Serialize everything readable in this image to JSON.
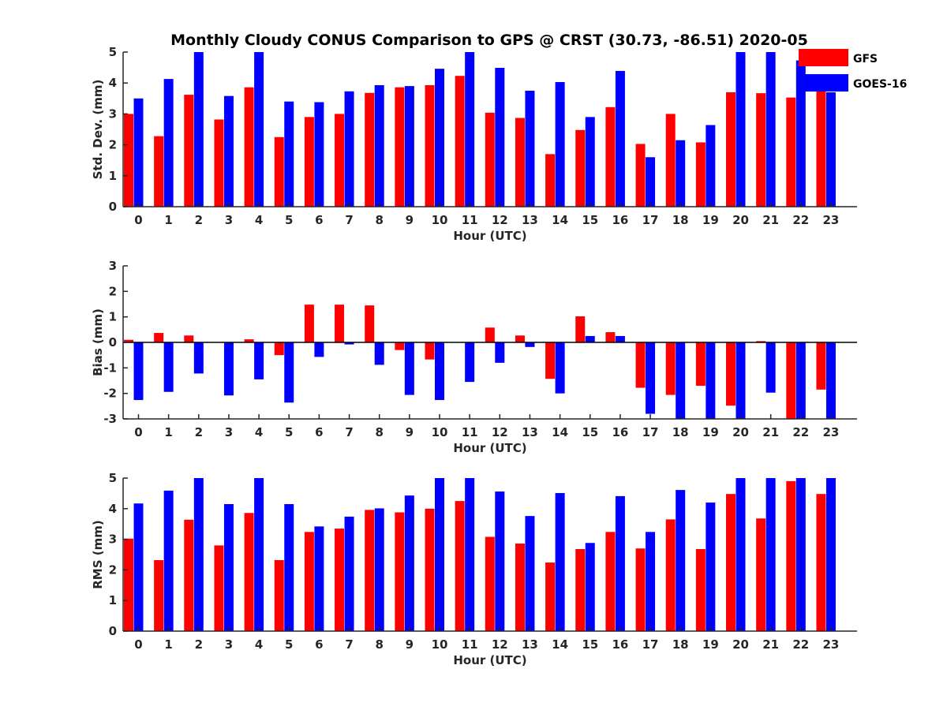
{
  "figure": {
    "title": "Monthly Cloudy CONUS Comparison to GPS @ CRST (30.73, -86.51) 2020-05"
  },
  "legend": {
    "placement": "top-right",
    "items": [
      {
        "name": "GFS",
        "color": "#ff0000"
      },
      {
        "name": "GOES-16",
        "color": "#0000ff"
      }
    ]
  },
  "chart_data": [
    {
      "type": "bar",
      "xlabel": "Hour (UTC)",
      "ylabel": "Std. Dev. (mm)",
      "ylim": [
        0,
        5
      ],
      "yticks": [
        0,
        1,
        2,
        3,
        4,
        5
      ],
      "categories": [
        "0",
        "1",
        "2",
        "3",
        "4",
        "5",
        "6",
        "7",
        "8",
        "9",
        "10",
        "11",
        "12",
        "13",
        "14",
        "15",
        "16",
        "17",
        "18",
        "19",
        "20",
        "21",
        "22",
        "23"
      ],
      "series": [
        {
          "name": "GFS",
          "color": "#ff0000",
          "values": [
            3.0,
            2.28,
            3.62,
            2.82,
            3.86,
            2.25,
            2.9,
            3.0,
            3.68,
            3.86,
            3.93,
            4.23,
            3.04,
            2.87,
            1.7,
            2.48,
            3.22,
            2.03,
            3.0,
            2.08,
            3.7,
            3.67,
            3.53,
            3.9
          ]
        },
        {
          "name": "GOES-16",
          "color": "#0000ff",
          "values": [
            3.5,
            4.13,
            5.0,
            3.58,
            5.0,
            3.4,
            3.38,
            3.73,
            3.93,
            3.9,
            4.46,
            5.0,
            4.49,
            3.75,
            4.03,
            2.9,
            4.39,
            1.6,
            2.15,
            2.64,
            5.0,
            5.0,
            4.73,
            3.7
          ]
        }
      ]
    },
    {
      "type": "bar",
      "xlabel": "Hour (UTC)",
      "ylabel": "Bias (mm)",
      "ylim": [
        -3,
        3
      ],
      "yticks": [
        -3,
        -2,
        -1,
        0,
        1,
        2,
        3
      ],
      "categories": [
        "0",
        "1",
        "2",
        "3",
        "4",
        "5",
        "6",
        "7",
        "8",
        "9",
        "10",
        "11",
        "12",
        "13",
        "14",
        "15",
        "16",
        "17",
        "18",
        "19",
        "20",
        "21",
        "22",
        "23"
      ],
      "series": [
        {
          "name": "GFS",
          "color": "#ff0000",
          "values": [
            0.1,
            0.37,
            0.27,
            0.0,
            0.12,
            -0.5,
            1.48,
            1.48,
            1.45,
            -0.3,
            -0.67,
            0.0,
            0.58,
            0.27,
            -1.43,
            1.02,
            0.4,
            -1.78,
            -2.06,
            -1.7,
            -2.48,
            0.05,
            -3.0,
            -1.85
          ]
        },
        {
          "name": "GOES-16",
          "color": "#0000ff",
          "values": [
            -2.26,
            -1.94,
            -1.22,
            -2.08,
            -1.45,
            -2.36,
            -0.57,
            -0.08,
            -0.88,
            -2.06,
            -2.26,
            -1.55,
            -0.8,
            -0.18,
            -2.0,
            0.25,
            0.25,
            -2.8,
            -3.0,
            -3.0,
            -3.0,
            -1.97,
            -3.0,
            -3.0
          ]
        }
      ]
    },
    {
      "type": "bar",
      "xlabel": "Hour (UTC)",
      "ylabel": "RMS (mm)",
      "ylim": [
        0,
        5
      ],
      "yticks": [
        0,
        1,
        2,
        3,
        4,
        5
      ],
      "categories": [
        "0",
        "1",
        "2",
        "3",
        "4",
        "5",
        "6",
        "7",
        "8",
        "9",
        "10",
        "11",
        "12",
        "13",
        "14",
        "15",
        "16",
        "17",
        "18",
        "19",
        "20",
        "21",
        "22",
        "23"
      ],
      "series": [
        {
          "name": "GFS",
          "color": "#ff0000",
          "values": [
            3.02,
            2.32,
            3.64,
            2.8,
            3.86,
            2.32,
            3.24,
            3.35,
            3.96,
            3.88,
            4.0,
            4.25,
            3.08,
            2.86,
            2.24,
            2.68,
            3.24,
            2.7,
            3.65,
            2.68,
            4.48,
            3.68,
            4.9,
            4.48
          ]
        },
        {
          "name": "GOES-16",
          "color": "#0000ff",
          "values": [
            4.17,
            4.59,
            5.0,
            4.15,
            5.0,
            4.15,
            3.42,
            3.74,
            4.01,
            4.43,
            5.0,
            5.0,
            4.56,
            3.76,
            4.51,
            2.88,
            4.41,
            3.24,
            4.61,
            4.2,
            5.0,
            5.0,
            5.0,
            5.0
          ]
        }
      ]
    }
  ]
}
